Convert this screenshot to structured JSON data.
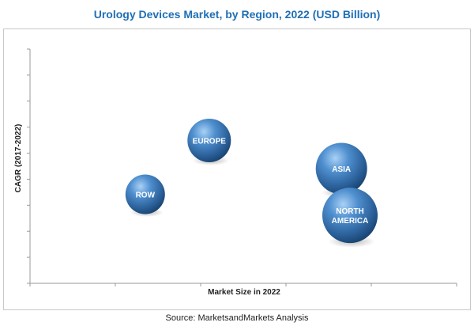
{
  "title": "Urology Devices Market, by Region, 2022 (USD Billion)",
  "source": "Source: MarketsandMarkets Analysis",
  "chart_data": {
    "type": "scatter",
    "title": "Urology Devices Market, by Region, 2022 (USD Billion)",
    "xlabel": "Market Size in 2022",
    "ylabel": "CAGR (2017-2022)",
    "xlim": [
      0,
      100
    ],
    "ylim": [
      0,
      100
    ],
    "grid": false,
    "bubble_color": "#2e6fb0",
    "points": [
      {
        "label": "EUROPE",
        "x": 42,
        "y": 61,
        "size": 5.5
      },
      {
        "label": "ROW",
        "x": 27,
        "y": 38,
        "size": 5.0
      },
      {
        "label": "ASIA",
        "x": 73,
        "y": 49,
        "size": 6.5
      },
      {
        "label": "NORTH|AMERICA",
        "x": 75,
        "y": 29,
        "size": 7.0
      }
    ]
  }
}
